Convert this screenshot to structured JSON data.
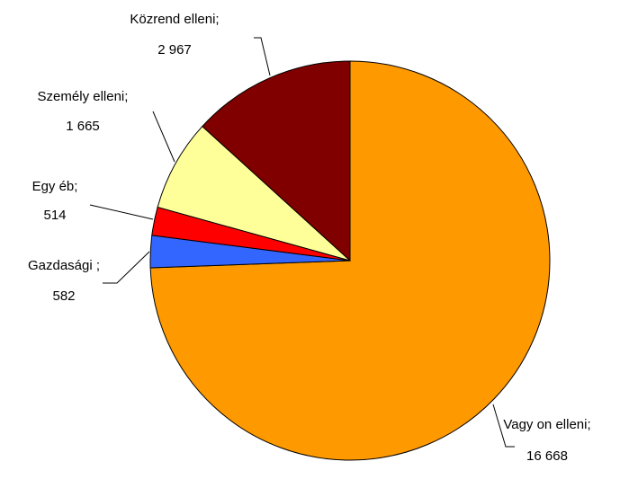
{
  "chart_data": {
    "type": "pie",
    "categories": [
      "Vagy on elleni;",
      "Gazdasági ;",
      "Egy éb;",
      "Személy elleni;",
      "Közrend elleni;"
    ],
    "values": [
      16668,
      582,
      514,
      1665,
      2967
    ],
    "value_labels": [
      "16 668",
      "582",
      "514",
      "1 665",
      "2 967"
    ],
    "colors": [
      "#FF9900",
      "#3366FF",
      "#FF0000",
      "#FFFF99",
      "#800000"
    ]
  }
}
